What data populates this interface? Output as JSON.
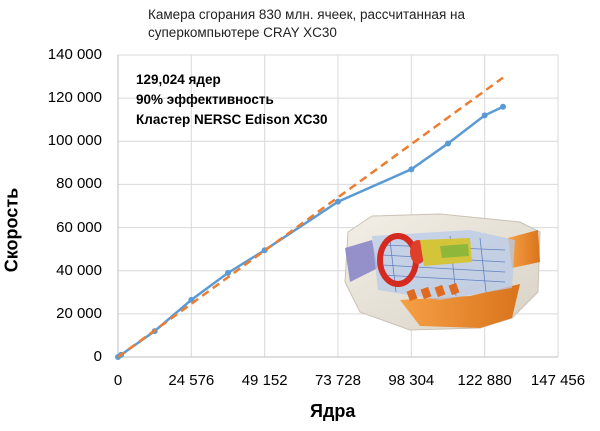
{
  "chart_data": {
    "type": "line",
    "title_lines": [
      "Камера сгорания 830 млн. ячеек, рассчитанная на",
      "суперкомпьютере CRAY XC30"
    ],
    "annotation_lines": [
      "129,024 ядер",
      "90% эффективность",
      "Кластер NERSC Edison XC30"
    ],
    "xlabel": "Ядра",
    "ylabel": "Скорость",
    "xlim": [
      0,
      147456
    ],
    "ylim": [
      0,
      140000
    ],
    "x_ticks": [
      0,
      24576,
      49152,
      73728,
      98304,
      122880,
      147456
    ],
    "x_tick_labels": [
      "0",
      "24 576",
      "49 152",
      "73 728",
      "98 304",
      "122 880",
      "147 456"
    ],
    "y_ticks": [
      0,
      20000,
      40000,
      60000,
      80000,
      100000,
      120000,
      140000
    ],
    "y_tick_labels": [
      "0",
      "20 000",
      "40 000",
      "60 000",
      "80 000",
      "100 000",
      "120 000",
      "140 000"
    ],
    "grid": true,
    "series": [
      {
        "style": "solid-with-markers",
        "color": "#5b9bd5",
        "x": [
          0,
          1024,
          12288,
          24576,
          36864,
          49152,
          73728,
          98304,
          110592,
          122880,
          129024
        ],
        "y": [
          0,
          1000,
          12000,
          26500,
          39000,
          49500,
          72000,
          87000,
          99000,
          112000,
          116000
        ]
      },
      {
        "style": "dashed",
        "color": "#ed7d31",
        "x": [
          0,
          129024
        ],
        "y": [
          0,
          129500
        ]
      }
    ],
    "inset_image": "combustion-chamber-simulation-render"
  }
}
